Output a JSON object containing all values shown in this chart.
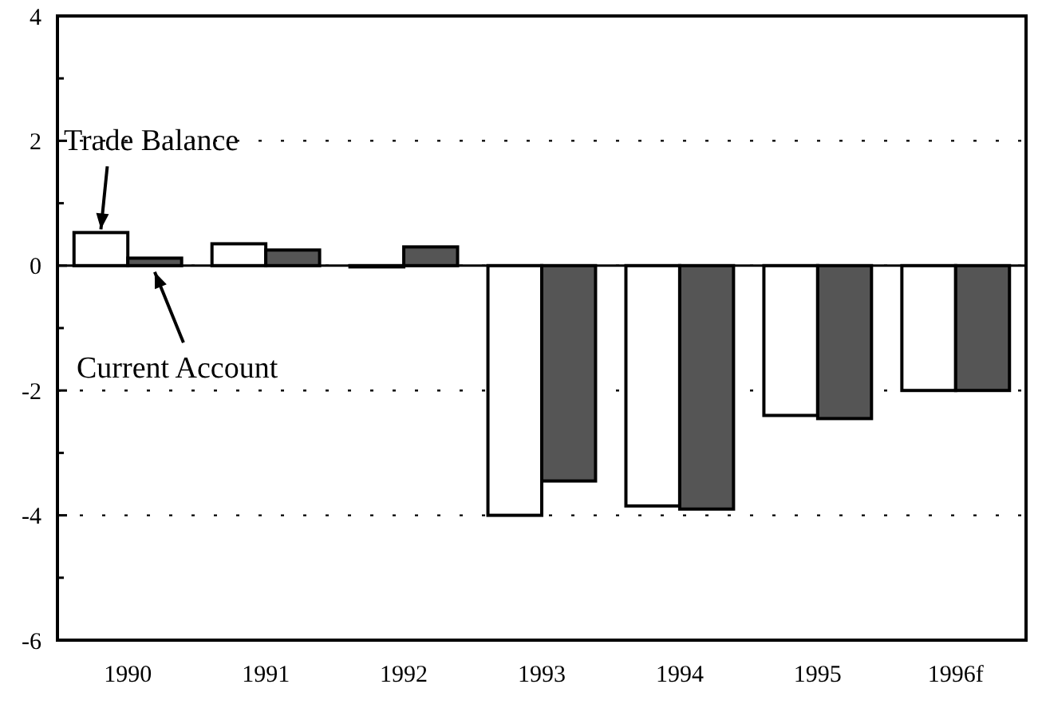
{
  "chart_data": {
    "type": "bar",
    "categories": [
      "1990",
      "1991",
      "1992",
      "1993",
      "1994",
      "1995",
      "1996f"
    ],
    "series": [
      {
        "name": "Trade Balance",
        "color": "#ffffff",
        "values": [
          0.53,
          0.35,
          -0.02,
          -4.0,
          -3.85,
          -2.4,
          -2.0
        ]
      },
      {
        "name": "Current Account",
        "color": "#555555",
        "values": [
          0.12,
          0.25,
          0.3,
          -3.45,
          -3.9,
          -2.45,
          -2.0
        ]
      }
    ],
    "ylim": [
      -6,
      4
    ],
    "yticks": [
      -6,
      {
        "value": -5,
        "label": null
      },
      -4,
      {
        "value": -3,
        "label": null
      },
      -2,
      {
        "value": -1,
        "label": null
      },
      0,
      {
        "value": 1,
        "label": null
      },
      2,
      {
        "value": 3,
        "label": null
      },
      4
    ],
    "grid": "y"
  }
}
